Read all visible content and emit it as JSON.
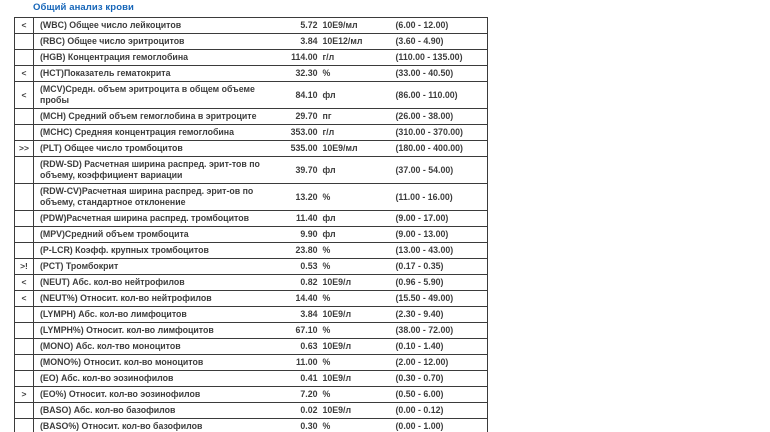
{
  "title": "Общий анализ крови",
  "colors": {
    "title": "#1565b8",
    "text": "#3d3d3d",
    "border": "#3b3b3b",
    "background": "#ffffff"
  },
  "table": {
    "columns": [
      "flag",
      "name",
      "value",
      "unit",
      "range"
    ]
  },
  "rows": [
    {
      "flag": "<",
      "name": "(WBC) Общее число лейкоцитов",
      "value": "5.72",
      "unit": "10E9/мл",
      "range": "(6.00 - 12.00)"
    },
    {
      "flag": "",
      "name": "(RBC) Общее число эритроцитов",
      "value": "3.84",
      "unit": "10E12/мл",
      "range": "(3.60 - 4.90)"
    },
    {
      "flag": "",
      "name": "(HGB) Концентрация гемоглобина",
      "value": "114.00",
      "unit": "г/л",
      "range": "(110.00 - 135.00)"
    },
    {
      "flag": "<",
      "name": "(HCT)Показатель гематокрита",
      "value": "32.30",
      "unit": "%",
      "range": "(33.00 - 40.50)"
    },
    {
      "flag": "<",
      "name": "(MCV)Средн. объем эритроцита в общем объеме пробы",
      "value": "84.10",
      "unit": "фл",
      "range": "(86.00 - 110.00)"
    },
    {
      "flag": "",
      "name": "(MCH) Средний объем гемоглобина в эритроците",
      "value": "29.70",
      "unit": "пг",
      "range": "(26.00 - 38.00)"
    },
    {
      "flag": "",
      "name": "(MCHC) Средняя концентрация гемоглобина",
      "value": "353.00",
      "unit": "г/л",
      "range": "(310.00 - 370.00)"
    },
    {
      "flag": ">>",
      "name": "(PLT) Общее число тромбоцитов",
      "value": "535.00",
      "unit": "10E9/мл",
      "range": "(180.00 - 400.00)"
    },
    {
      "flag": "",
      "name": "(RDW-SD) Расчетная ширина распред. эрит-тов по объему, коэффициент вариации",
      "value": "39.70",
      "unit": "фл",
      "range": "(37.00 - 54.00)"
    },
    {
      "flag": "",
      "name": "(RDW-CV)Расчетная ширина распред. эрит-ов по объему, стандартное отклонение",
      "value": "13.20",
      "unit": "%",
      "range": "(11.00 - 16.00)"
    },
    {
      "flag": "",
      "name": "(PDW)Расчетная ширина распред. тромбоцитов",
      "value": "11.40",
      "unit": "фл",
      "range": "(9.00 - 17.00)"
    },
    {
      "flag": "",
      "name": "(MPV)Средний объем тромбоцита",
      "value": "9.90",
      "unit": "фл",
      "range": "(9.00 - 13.00)"
    },
    {
      "flag": "",
      "name": "(P-LCR) Коэфф. крупных тромбоцитов",
      "value": "23.80",
      "unit": "%",
      "range": "(13.00 - 43.00)"
    },
    {
      "flag": ">!",
      "name": "(PCT) Тромбокрит",
      "value": "0.53",
      "unit": "%",
      "range": "(0.17 - 0.35)"
    },
    {
      "flag": "<",
      "name": "(NEUT) Абс. кол-во нейтрофилов",
      "value": "0.82",
      "unit": "10E9/л",
      "range": "(0.96 - 5.90)"
    },
    {
      "flag": "<",
      "name": "(NEUT%) Относит. кол-во нейтрофилов",
      "value": "14.40",
      "unit": "%",
      "range": "(15.50 - 49.00)"
    },
    {
      "flag": "",
      "name": "(LYMPH) Абс. кол-во лимфоцитов",
      "value": "3.84",
      "unit": "10E9/л",
      "range": "(2.30 - 9.40)"
    },
    {
      "flag": "",
      "name": "(LYMPH%) Относит. кол-во лимфоцитов",
      "value": "67.10",
      "unit": "%",
      "range": "(38.00 - 72.00)"
    },
    {
      "flag": "",
      "name": "(MONO) Абс. кол-тво моноцитов",
      "value": "0.63",
      "unit": "10E9/л",
      "range": "(0.10 - 1.40)"
    },
    {
      "flag": "",
      "name": "(MONO%) Относит. кол-во моноцитов",
      "value": "11.00",
      "unit": "%",
      "range": "(2.00 - 12.00)"
    },
    {
      "flag": "",
      "name": "(EO) Абс. кол-во эозинофилов",
      "value": "0.41",
      "unit": "10E9/л",
      "range": "(0.30 - 0.70)"
    },
    {
      "flag": ">",
      "name": "(EO%) Относит. кол-во эозинофилов",
      "value": "7.20",
      "unit": "%",
      "range": "(0.50 - 6.00)"
    },
    {
      "flag": "",
      "name": "(BASO) Абс. кол-во базофилов",
      "value": "0.02",
      "unit": "10E9/л",
      "range": "(0.00 - 0.12)"
    },
    {
      "flag": "",
      "name": "(BASO%) Относит. кол-во базофилов",
      "value": "0.30",
      "unit": "%",
      "range": "(0.00 - 1.00)"
    }
  ]
}
